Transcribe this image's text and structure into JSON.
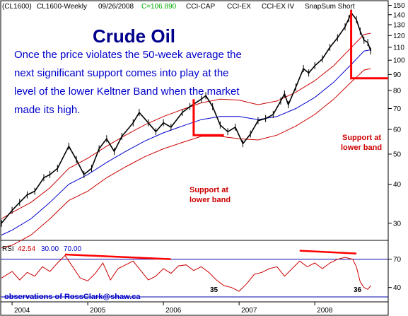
{
  "header": {
    "symbol": "(CL1600)",
    "series": "CL1600-Weekly",
    "date": "09/26/2008",
    "close": "C=106.890",
    "ind1": "CCI-CAP",
    "ind2": "CCI-EX",
    "ind3": "CCI-EX IV",
    "ind4": "SnapSum Short"
  },
  "title": "Crude Oil",
  "commentary": [
    "Once the price violates the 50-week average the",
    "next significant support comes into play at the",
    "level of the lower Keltner Band when the market",
    "made its high."
  ],
  "annotations": {
    "support_2008": [
      "Support at",
      "lower band"
    ],
    "support_2006": [
      "Support at",
      "lower band"
    ]
  },
  "rsi": {
    "label": "RSI",
    "current": "42.54",
    "lower": "30.00",
    "upper": "70.00",
    "markers": [
      "35",
      "36"
    ]
  },
  "footer": "observations of RossClark@shaw.ca",
  "colors": {
    "background": "#ffffff",
    "price_bars": "#000000",
    "ma50": "#0000cc",
    "keltner": "#cc0000",
    "annotation": "#ff0000",
    "title": "#00008b",
    "commentary": "#0000cc",
    "rsi_line": "#cc0000",
    "rsi_highlight": "#cc00cc",
    "close_value": "#00aa00",
    "footer": "#0000cc"
  },
  "chart_data": [
    {
      "type": "line",
      "title": "Crude Oil",
      "scale": "log",
      "ylim": [
        27,
        152
      ],
      "xlim": [
        2003.85,
        2008.97
      ],
      "y_ticks": [
        30,
        40,
        50,
        60,
        70,
        80,
        90,
        100,
        110,
        120,
        130,
        140,
        150
      ],
      "x_ticks": [
        {
          "label": "2004",
          "x": 2004.0
        },
        {
          "label": "2005",
          "x": 2005.0
        },
        {
          "label": "2006",
          "x": 2006.0
        },
        {
          "label": "2007",
          "x": 2007.0
        },
        {
          "label": "2008",
          "x": 2008.0
        }
      ],
      "series": [
        {
          "name": "",
          "role": "price",
          "points": [
            [
              2003.86,
              30
            ],
            [
              2004.0,
              33
            ],
            [
              2004.1,
              35
            ],
            [
              2004.2,
              37
            ],
            [
              2004.3,
              38
            ],
            [
              2004.42,
              42
            ],
            [
              2004.5,
              43
            ],
            [
              2004.6,
              45
            ],
            [
              2004.75,
              53
            ],
            [
              2004.85,
              48
            ],
            [
              2004.95,
              43
            ],
            [
              2005.05,
              45
            ],
            [
              2005.15,
              52
            ],
            [
              2005.25,
              56
            ],
            [
              2005.35,
              51
            ],
            [
              2005.45,
              57
            ],
            [
              2005.6,
              63
            ],
            [
              2005.68,
              68
            ],
            [
              2005.8,
              63
            ],
            [
              2005.9,
              59
            ],
            [
              2006.0,
              63
            ],
            [
              2006.1,
              61
            ],
            [
              2006.25,
              68
            ],
            [
              2006.35,
              71
            ],
            [
              2006.5,
              75
            ],
            [
              2006.56,
              77
            ],
            [
              2006.65,
              71
            ],
            [
              2006.75,
              62
            ],
            [
              2006.85,
              59
            ],
            [
              2006.95,
              61
            ],
            [
              2007.05,
              54
            ],
            [
              2007.15,
              58
            ],
            [
              2007.25,
              64
            ],
            [
              2007.35,
              65
            ],
            [
              2007.45,
              67
            ],
            [
              2007.55,
              74
            ],
            [
              2007.6,
              78
            ],
            [
              2007.65,
              72
            ],
            [
              2007.75,
              82
            ],
            [
              2007.85,
              94
            ],
            [
              2007.92,
              91
            ],
            [
              2008.0,
              96
            ],
            [
              2008.1,
              101
            ],
            [
              2008.2,
              110
            ],
            [
              2008.3,
              118
            ],
            [
              2008.4,
              128
            ],
            [
              2008.45,
              136
            ],
            [
              2008.48,
              142
            ],
            [
              2008.55,
              135
            ],
            [
              2008.6,
              124
            ],
            [
              2008.65,
              116
            ],
            [
              2008.7,
              114
            ],
            [
              2008.74,
              107
            ]
          ]
        },
        {
          "name": "",
          "role": "ma50",
          "points": [
            [
              2003.86,
              27.5
            ],
            [
              2004.0,
              28.5
            ],
            [
              2004.25,
              31
            ],
            [
              2004.5,
              35
            ],
            [
              2004.75,
              40
            ],
            [
              2005.0,
              43
            ],
            [
              2005.25,
              47
            ],
            [
              2005.5,
              51
            ],
            [
              2005.75,
              55
            ],
            [
              2006.0,
              58.5
            ],
            [
              2006.25,
              61.5
            ],
            [
              2006.5,
              64.5
            ],
            [
              2006.75,
              66
            ],
            [
              2007.0,
              66
            ],
            [
              2007.25,
              64.5
            ],
            [
              2007.5,
              66
            ],
            [
              2007.75,
              70
            ],
            [
              2008.0,
              76
            ],
            [
              2008.25,
              85
            ],
            [
              2008.5,
              98
            ],
            [
              2008.65,
              107
            ],
            [
              2008.74,
              108
            ]
          ]
        },
        {
          "name": "",
          "role": "keltner_upper",
          "points": [
            [
              2003.86,
              31
            ],
            [
              2004.0,
              32.5
            ],
            [
              2004.25,
              35
            ],
            [
              2004.5,
              39
            ],
            [
              2004.75,
              45
            ],
            [
              2005.0,
              48.5
            ],
            [
              2005.25,
              53
            ],
            [
              2005.5,
              57.5
            ],
            [
              2005.75,
              62
            ],
            [
              2006.0,
              66
            ],
            [
              2006.25,
              69.5
            ],
            [
              2006.5,
              73
            ],
            [
              2006.75,
              75
            ],
            [
              2007.0,
              74.5
            ],
            [
              2007.25,
              72
            ],
            [
              2007.5,
              74
            ],
            [
              2007.75,
              79
            ],
            [
              2008.0,
              86
            ],
            [
              2008.25,
              96
            ],
            [
              2008.5,
              111
            ],
            [
              2008.65,
              121
            ],
            [
              2008.74,
              122
            ]
          ]
        },
        {
          "name": "",
          "role": "keltner_lower",
          "points": [
            [
              2003.86,
              25
            ],
            [
              2004.0,
              25.5
            ],
            [
              2004.25,
              27.5
            ],
            [
              2004.5,
              31
            ],
            [
              2004.75,
              35.5
            ],
            [
              2005.0,
              38
            ],
            [
              2005.25,
              42
            ],
            [
              2005.5,
              45.5
            ],
            [
              2005.75,
              49
            ],
            [
              2006.0,
              52
            ],
            [
              2006.25,
              54.5
            ],
            [
              2006.5,
              57
            ],
            [
              2006.75,
              57
            ],
            [
              2007.0,
              56
            ],
            [
              2007.25,
              55.5
            ],
            [
              2007.5,
              57.5
            ],
            [
              2007.75,
              61.5
            ],
            [
              2008.0,
              67
            ],
            [
              2008.25,
              75
            ],
            [
              2008.5,
              86
            ],
            [
              2008.65,
              93
            ],
            [
              2008.74,
              94
            ]
          ]
        }
      ],
      "support_levels": [
        {
          "label": "Support at lower band",
          "from": 2006.4,
          "to": 2006.8,
          "y": 57.5,
          "drop_from": 75
        },
        {
          "label": "Support at lower band",
          "from": 2008.48,
          "to": 2008.97,
          "y": 87.5,
          "drop_from": 145
        }
      ]
    },
    {
      "type": "line",
      "title": "RSI",
      "ylim": [
        27,
        87
      ],
      "xlim": [
        2003.85,
        2008.97
      ],
      "y_ticks": [
        40,
        70
      ],
      "reference_lines": [
        30,
        70
      ],
      "series": [
        {
          "name": "RSI",
          "points": [
            [
              2003.86,
              50
            ],
            [
              2004.0,
              57
            ],
            [
              2004.1,
              48
            ],
            [
              2004.2,
              56
            ],
            [
              2004.3,
              52
            ],
            [
              2004.4,
              62
            ],
            [
              2004.5,
              57
            ],
            [
              2004.6,
              66
            ],
            [
              2004.7,
              74
            ],
            [
              2004.8,
              62
            ],
            [
              2004.9,
              50
            ],
            [
              2005.0,
              47
            ],
            [
              2005.1,
              55
            ],
            [
              2005.2,
              66
            ],
            [
              2005.3,
              48
            ],
            [
              2005.4,
              60
            ],
            [
              2005.5,
              64
            ],
            [
              2005.6,
              68
            ],
            [
              2005.7,
              58
            ],
            [
              2005.8,
              48
            ],
            [
              2005.9,
              52
            ],
            [
              2006.0,
              60
            ],
            [
              2006.1,
              55
            ],
            [
              2006.2,
              63
            ],
            [
              2006.3,
              64
            ],
            [
              2006.4,
              58
            ],
            [
              2006.5,
              62
            ],
            [
              2006.6,
              56
            ],
            [
              2006.7,
              48
            ],
            [
              2006.8,
              42
            ],
            [
              2006.9,
              40
            ],
            [
              2007.0,
              36
            ],
            [
              2007.1,
              44
            ],
            [
              2007.2,
              54
            ],
            [
              2007.3,
              56
            ],
            [
              2007.4,
              60
            ],
            [
              2007.5,
              62
            ],
            [
              2007.6,
              52
            ],
            [
              2007.7,
              60
            ],
            [
              2007.8,
              68
            ],
            [
              2007.9,
              62
            ],
            [
              2008.0,
              66
            ],
            [
              2008.1,
              60
            ],
            [
              2008.2,
              66
            ],
            [
              2008.3,
              70
            ],
            [
              2008.4,
              72
            ],
            [
              2008.5,
              70
            ],
            [
              2008.55,
              62
            ],
            [
              2008.6,
              46
            ],
            [
              2008.65,
              40
            ],
            [
              2008.7,
              38
            ],
            [
              2008.74,
              42
            ]
          ]
        }
      ],
      "divergence_lines": [
        {
          "from": [
            2004.7,
            75
          ],
          "to": [
            2006.1,
            70
          ]
        },
        {
          "from": [
            2007.8,
            79
          ],
          "to": [
            2008.55,
            76
          ]
        }
      ]
    }
  ]
}
